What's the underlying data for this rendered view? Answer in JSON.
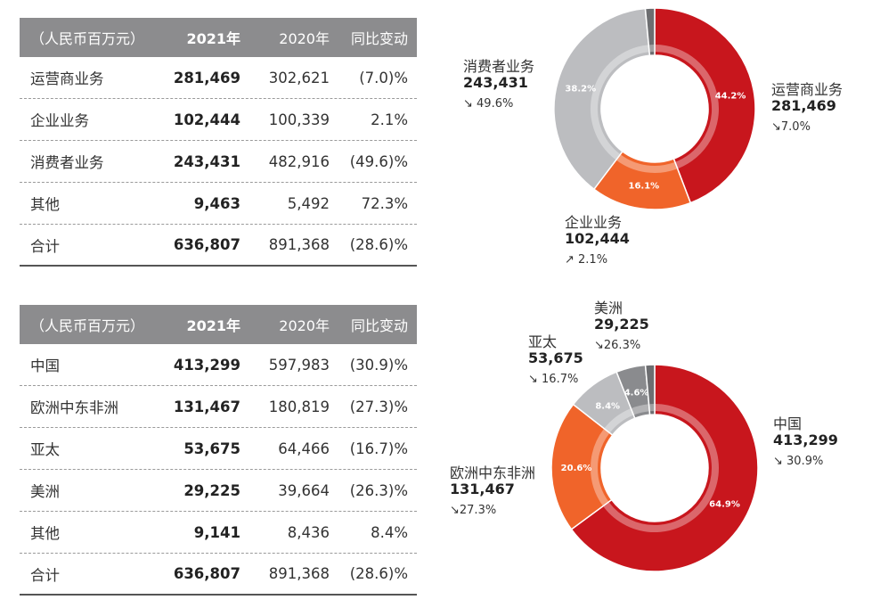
{
  "table1": {
    "header": [
      "（人民币百万元）",
      "2021年",
      "2020年",
      "同比变动"
    ],
    "rows": [
      [
        "运营商业务",
        "281,469",
        "302,621",
        "(7.0)%"
      ],
      [
        "企业业务",
        "102,444",
        "100,339",
        "2.1%"
      ],
      [
        "消费者业务",
        "243,431",
        "482,916",
        "(49.6)%"
      ],
      [
        "其他",
        "9,463",
        "5,492",
        "72.3%"
      ],
      [
        "合计",
        "636,807",
        "891,368",
        "(28.6)%"
      ]
    ]
  },
  "table2": {
    "header": [
      "（人民币百万元）",
      "2021年",
      "2020年",
      "同比变动"
    ],
    "rows": [
      [
        "中国",
        "413,299",
        "597,983",
        "(30.9)%"
      ],
      [
        "欧洲中东非洲",
        "131,467",
        "180,819",
        "(27.3)%"
      ],
      [
        "亚太",
        "53,675",
        "64,466",
        "(16.7)%"
      ],
      [
        "美洲",
        "29,225",
        "39,664",
        "(26.3)%"
      ],
      [
        "其他",
        "9,141",
        "8,436",
        "8.4%"
      ],
      [
        "合计",
        "636,807",
        "891,368",
        "(28.6)%"
      ]
    ]
  },
  "chart_data": [
    {
      "type": "pie",
      "categories": [
        "运营商业务",
        "企业业务",
        "消费者业务",
        "其他"
      ],
      "values": [
        281469,
        102444,
        243431,
        9463
      ],
      "slice_labels": [
        "44.2%",
        "16.1%",
        "38.2%",
        ""
      ],
      "colors": [
        "#c8161d",
        "#f0642a",
        "#bcbdc0",
        "#6d6e71"
      ],
      "callouts": [
        {
          "name": "运营商业务",
          "value": "281,469",
          "change": "↘7.0%"
        },
        {
          "name": "企业业务",
          "value": "102,444",
          "change": "↗ 2.1%"
        },
        {
          "name": "消费者业务",
          "value": "243,431",
          "change": "↘ 49.6%"
        }
      ]
    },
    {
      "type": "pie",
      "categories": [
        "中国",
        "欧洲中东非洲",
        "亚太",
        "美洲",
        "其他"
      ],
      "values": [
        413299,
        131467,
        53675,
        29225,
        9141
      ],
      "slice_labels": [
        "64.9%",
        "20.6%",
        "8.4%",
        "4.6%",
        ""
      ],
      "colors": [
        "#c8161d",
        "#f0642a",
        "#bcbdc0",
        "#8a8b8e",
        "#6d6e71"
      ],
      "callouts": [
        {
          "name": "中国",
          "value": "413,299",
          "change": "↘ 30.9%"
        },
        {
          "name": "欧洲中东非洲",
          "value": "131,467",
          "change": "↘27.3%"
        },
        {
          "name": "亚太",
          "value": "53,675",
          "change": "↘ 16.7%"
        },
        {
          "name": "美洲",
          "value": "29,225",
          "change": "↘26.3%"
        }
      ]
    }
  ]
}
